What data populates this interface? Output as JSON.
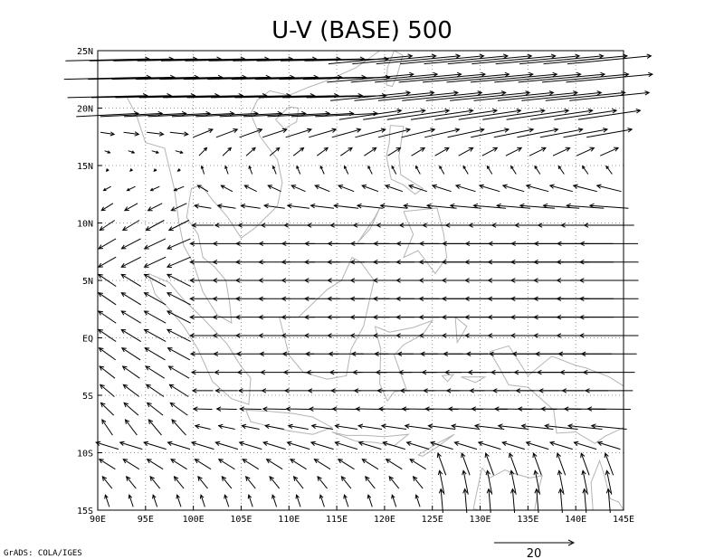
{
  "chart_data": {
    "type": "vector",
    "title": "U-V (BASE) 500",
    "xlabel": "",
    "ylabel": "",
    "x_ticks": [
      "90E",
      "95E",
      "100E",
      "105E",
      "110E",
      "115E",
      "120E",
      "125E",
      "130E",
      "135E",
      "140E",
      "145E"
    ],
    "y_ticks": [
      "25N",
      "20N",
      "15N",
      "10N",
      "5N",
      "EQ",
      "5S",
      "10S",
      "15S"
    ],
    "xlim": [
      90,
      145
    ],
    "ylim": [
      -15,
      25
    ],
    "grid": true,
    "grid_style": "dotted",
    "reference_vector": {
      "value": 20,
      "label": "20"
    },
    "credit": "GrADS: COLA/IGES",
    "colors": {
      "vectors": "#000000",
      "coastline": "#b4b4b4",
      "grid": "#7a7a7a"
    },
    "zonal_wind_profile": [
      {
        "lat": 24,
        "u": 21,
        "v": 1
      },
      {
        "lat": 22,
        "u": 22,
        "v": 1
      },
      {
        "lat": 20,
        "u": 18,
        "v": 1
      },
      {
        "lat": 18,
        "u": 10,
        "v": 2
      },
      {
        "lat": 16,
        "u": 3,
        "v": 2
      },
      {
        "lat": 14,
        "u": -3,
        "v": 2
      },
      {
        "lat": 12,
        "u": -7,
        "v": 1
      },
      {
        "lat": 10,
        "u": -10,
        "v": 0
      },
      {
        "lat": 8,
        "u": -12,
        "v": 0
      },
      {
        "lat": 6,
        "u": -12,
        "v": 0
      },
      {
        "lat": 4,
        "u": -12,
        "v": 0
      },
      {
        "lat": 2,
        "u": -12,
        "v": 0
      },
      {
        "lat": 0,
        "u": -12,
        "v": 0
      },
      {
        "lat": -2,
        "u": -11,
        "v": 0
      },
      {
        "lat": -4,
        "u": -10,
        "v": 0
      },
      {
        "lat": -6,
        "u": -9,
        "v": 0
      },
      {
        "lat": -8,
        "u": -7,
        "v": 1
      },
      {
        "lat": -10,
        "u": -5,
        "v": 2
      },
      {
        "lat": -12,
        "u": -3,
        "v": 3
      },
      {
        "lat": -14,
        "u": -1,
        "v": 3
      }
    ],
    "vector_spacing_deg": {
      "lon": 2.5,
      "lat": 1.6
    }
  }
}
